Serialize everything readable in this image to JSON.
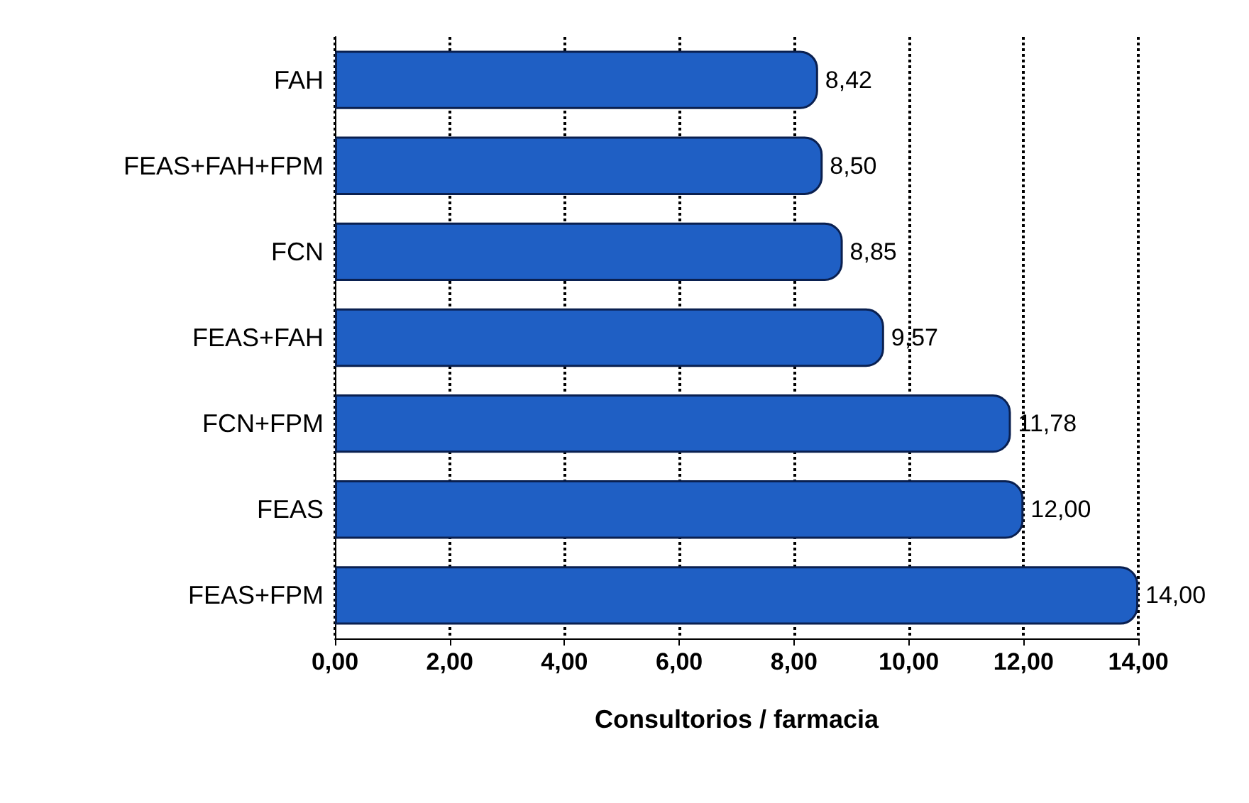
{
  "chart_data": {
    "type": "bar",
    "orientation": "horizontal",
    "xlabel": "Consultorios / farmacia",
    "categories": [
      "FAH",
      "FEAS+FAH+FPM",
      "FCN",
      "FEAS+FAH",
      "FCN+FPM",
      "FEAS",
      "FEAS+FPM"
    ],
    "values": [
      8.42,
      8.5,
      8.85,
      9.57,
      11.78,
      12.0,
      14.0
    ],
    "value_labels": [
      "8,42",
      "8,50",
      "8,85",
      "9,57",
      "11,78",
      "12,00",
      "14,00"
    ],
    "color": "#1f5fc4",
    "xlim": [
      0,
      14
    ],
    "xticks": [
      {
        "value": 0,
        "label": "0,00"
      },
      {
        "value": 2,
        "label": "2,00"
      },
      {
        "value": 4,
        "label": "4,00"
      },
      {
        "value": 6,
        "label": "6,00"
      },
      {
        "value": 8,
        "label": "8,00"
      },
      {
        "value": 10,
        "label": "10,00"
      },
      {
        "value": 12,
        "label": "12,00"
      },
      {
        "value": 14,
        "label": "14,00"
      }
    ],
    "grid": "x",
    "line_style": "dotted"
  }
}
